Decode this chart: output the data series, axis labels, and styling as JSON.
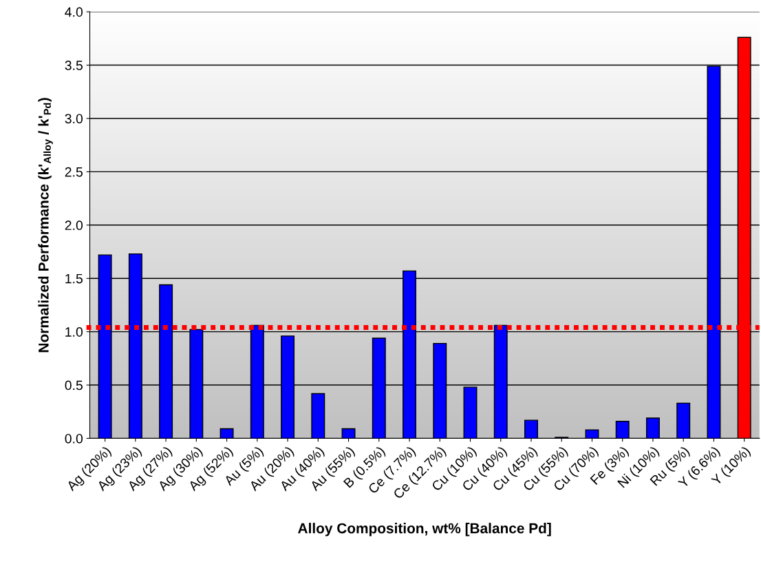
{
  "chart_data": {
    "type": "bar",
    "xlabel": "Alloy Composition, wt% [Balance Pd]",
    "ylabel": "Normalized Performance (k'$_{Alloy}$ / k'$_{Pd}$)",
    "categories": [
      "Ag (20%)",
      "Ag (23%)",
      "Ag (27%)",
      "Ag (30%)",
      "Ag (52%)",
      "Au (5%)",
      "Au (20%)",
      "Au (40%)",
      "Au (55%)",
      "B (0.5%)",
      "Ce (7.7%)",
      "Ce (12.7%)",
      "Cu (10%)",
      "Cu (40%)",
      "Cu (45%)",
      "Cu (55%)",
      "Cu (70%)",
      "Fe (3%)",
      "Ni (10%)",
      "Ru (5%)",
      "Y (6.6%)",
      "Y (10%)"
    ],
    "values": [
      1.72,
      1.73,
      1.44,
      1.02,
      0.09,
      1.06,
      0.96,
      0.42,
      0.09,
      0.94,
      1.57,
      0.89,
      0.48,
      1.06,
      0.17,
      0.01,
      0.08,
      0.16,
      0.19,
      0.33,
      3.49,
      3.76
    ],
    "colors": [
      "#0000ff",
      "#0000ff",
      "#0000ff",
      "#0000ff",
      "#0000ff",
      "#0000ff",
      "#0000ff",
      "#0000ff",
      "#0000ff",
      "#0000ff",
      "#0000ff",
      "#0000ff",
      "#0000ff",
      "#0000ff",
      "#0000ff",
      "#0000ff",
      "#0000ff",
      "#0000ff",
      "#0000ff",
      "#0000ff",
      "#0000ff",
      "#ff0000"
    ],
    "ylim": [
      0,
      4.0
    ],
    "yticks": [
      {
        "value": 0,
        "label": "0.0"
      },
      {
        "value": 0.5,
        "label": "0.5"
      },
      {
        "value": 1.0,
        "label": "1.0"
      },
      {
        "value": 1.5,
        "label": "1.5"
      },
      {
        "value": 2.0,
        "label": "2.0"
      },
      {
        "value": 2.5,
        "label": "2.5"
      },
      {
        "value": 3.0,
        "label": "3.0"
      },
      {
        "value": 3.5,
        "label": "3.5"
      },
      {
        "value": 4.0,
        "label": "4.0"
      }
    ],
    "grid": "y",
    "legend": false,
    "ref_lines": [
      {
        "axis": "y",
        "value": 1.04,
        "color": "#ff0000",
        "line_style": "dotted"
      }
    ]
  }
}
